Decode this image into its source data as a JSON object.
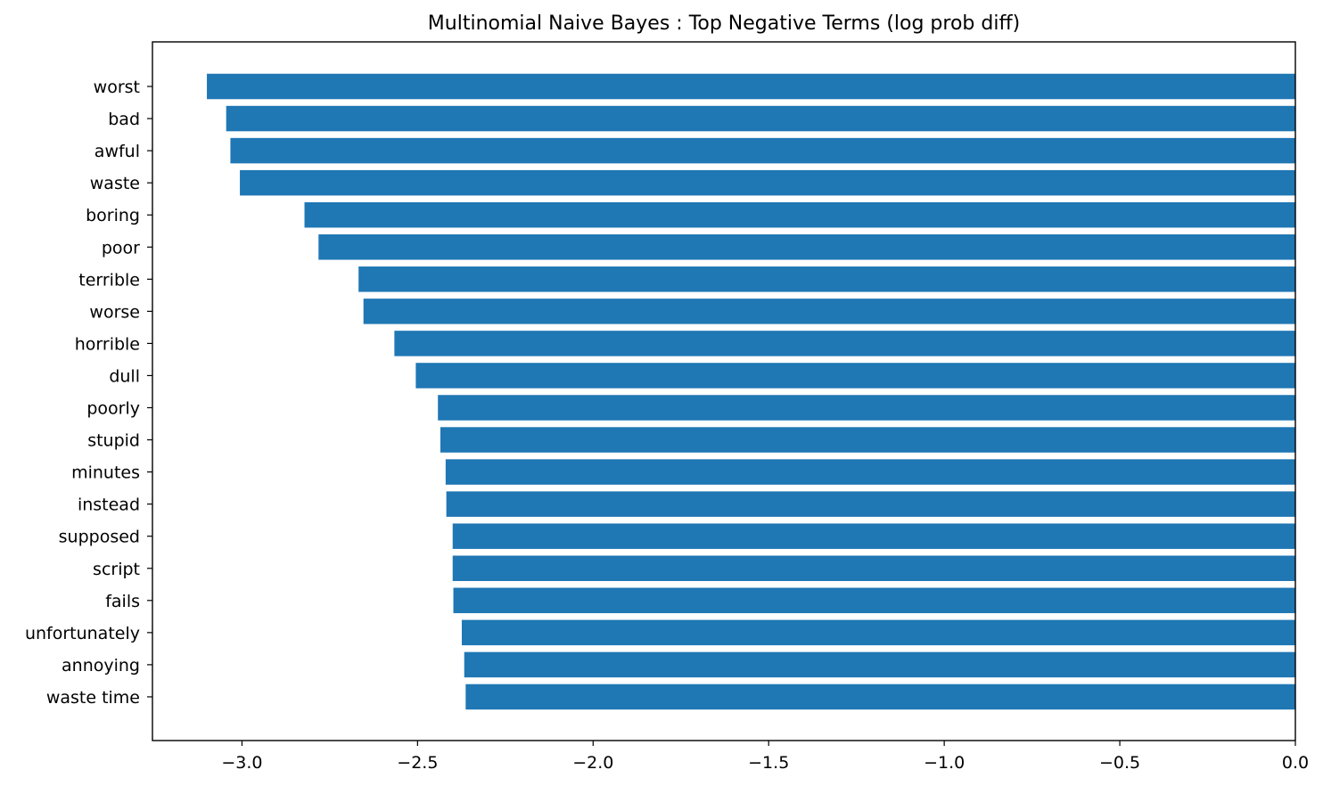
{
  "chart_data": {
    "type": "bar",
    "orientation": "horizontal",
    "title": "Multinomial Naive Bayes : Top Negative Terms (log prob diff)",
    "xlabel": "",
    "ylabel": "",
    "categories": [
      "worst",
      "bad",
      "awful",
      "waste",
      "boring",
      "poor",
      "terrible",
      "worse",
      "horrible",
      "dull",
      "poorly",
      "stupid",
      "minutes",
      "instead",
      "supposed",
      "script",
      "fails",
      "unfortunately",
      "annoying",
      "waste time"
    ],
    "values": [
      -3.1,
      -3.045,
      -3.033,
      -3.006,
      -2.822,
      -2.782,
      -2.668,
      -2.654,
      -2.566,
      -2.505,
      -2.442,
      -2.435,
      -2.42,
      -2.418,
      -2.4,
      -2.4,
      -2.398,
      -2.374,
      -2.367,
      -2.363
    ],
    "xlim": [
      -3.255,
      0.0
    ],
    "xticks": [
      -3.0,
      -2.5,
      -2.0,
      -1.5,
      -1.0,
      -0.5,
      0.0
    ],
    "xtick_labels": [
      "−3.0",
      "−2.5",
      "−2.0",
      "−1.5",
      "−1.0",
      "−0.5",
      "0.0"
    ],
    "bar_color": "#1f77b4",
    "grid": false,
    "legend": "none"
  }
}
